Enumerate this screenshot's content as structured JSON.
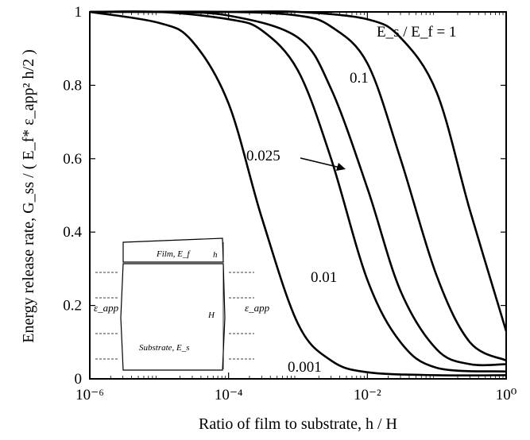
{
  "chart_data": {
    "type": "line",
    "xscale": "log",
    "xlim": [
      1e-06,
      1
    ],
    "ylim": [
      0,
      1
    ],
    "xlabel": "Ratio of film to substrate,  h / H",
    "ylabel": "Energy release rate,  G_ss / ( E_f* ε_app² h/2 )",
    "x_ticks": [
      "10⁻⁶",
      "10⁻⁴",
      "10⁻²",
      "10⁰"
    ],
    "y_ticks": [
      "0",
      "0.2",
      "0.4",
      "0.6",
      "0.8",
      "1"
    ],
    "legend_title": "E_s / E_f = 1",
    "series": [
      {
        "name": "0.001",
        "x": [
          1e-06,
          1e-05,
          3e-05,
          0.0001,
          0.0003,
          0.001,
          0.003,
          0.01,
          0.1,
          1
        ],
        "y": [
          1.0,
          0.97,
          0.92,
          0.75,
          0.44,
          0.15,
          0.05,
          0.018,
          0.01,
          0.01
        ]
      },
      {
        "name": "0.01",
        "x": [
          1e-06,
          1e-05,
          0.0001,
          0.0003,
          0.001,
          0.003,
          0.01,
          0.03,
          0.1,
          1
        ],
        "y": [
          1.0,
          1.0,
          0.98,
          0.95,
          0.84,
          0.6,
          0.27,
          0.1,
          0.03,
          0.02
        ]
      },
      {
        "name": "0.025",
        "x": [
          1e-06,
          1e-05,
          0.0001,
          0.001,
          0.003,
          0.01,
          0.03,
          0.1,
          0.3,
          1
        ],
        "y": [
          1.0,
          1.0,
          0.99,
          0.93,
          0.79,
          0.52,
          0.24,
          0.08,
          0.04,
          0.04
        ]
      },
      {
        "name": "0.1",
        "x": [
          1e-06,
          0.0001,
          0.001,
          0.003,
          0.01,
          0.03,
          0.1,
          0.3,
          1
        ],
        "y": [
          1.0,
          1.0,
          0.99,
          0.96,
          0.86,
          0.6,
          0.28,
          0.1,
          0.05
        ]
      },
      {
        "name": "1",
        "x": [
          1e-06,
          0.0001,
          0.001,
          0.01,
          0.03,
          0.1,
          0.3,
          1
        ],
        "y": [
          1.0,
          1.0,
          1.0,
          0.98,
          0.93,
          0.78,
          0.46,
          0.13
        ]
      }
    ],
    "annotations": [
      "E_s / E_f = 1",
      "0.1",
      "0.025",
      "0.01",
      "0.001"
    ],
    "grid": false
  },
  "inset": {
    "film_label": "Film, E_f",
    "substrate_label": "Substrate, E_s",
    "h_label": "h",
    "H_label": "H",
    "strain_label_left": "ε_app",
    "strain_label_right": "ε_app"
  }
}
